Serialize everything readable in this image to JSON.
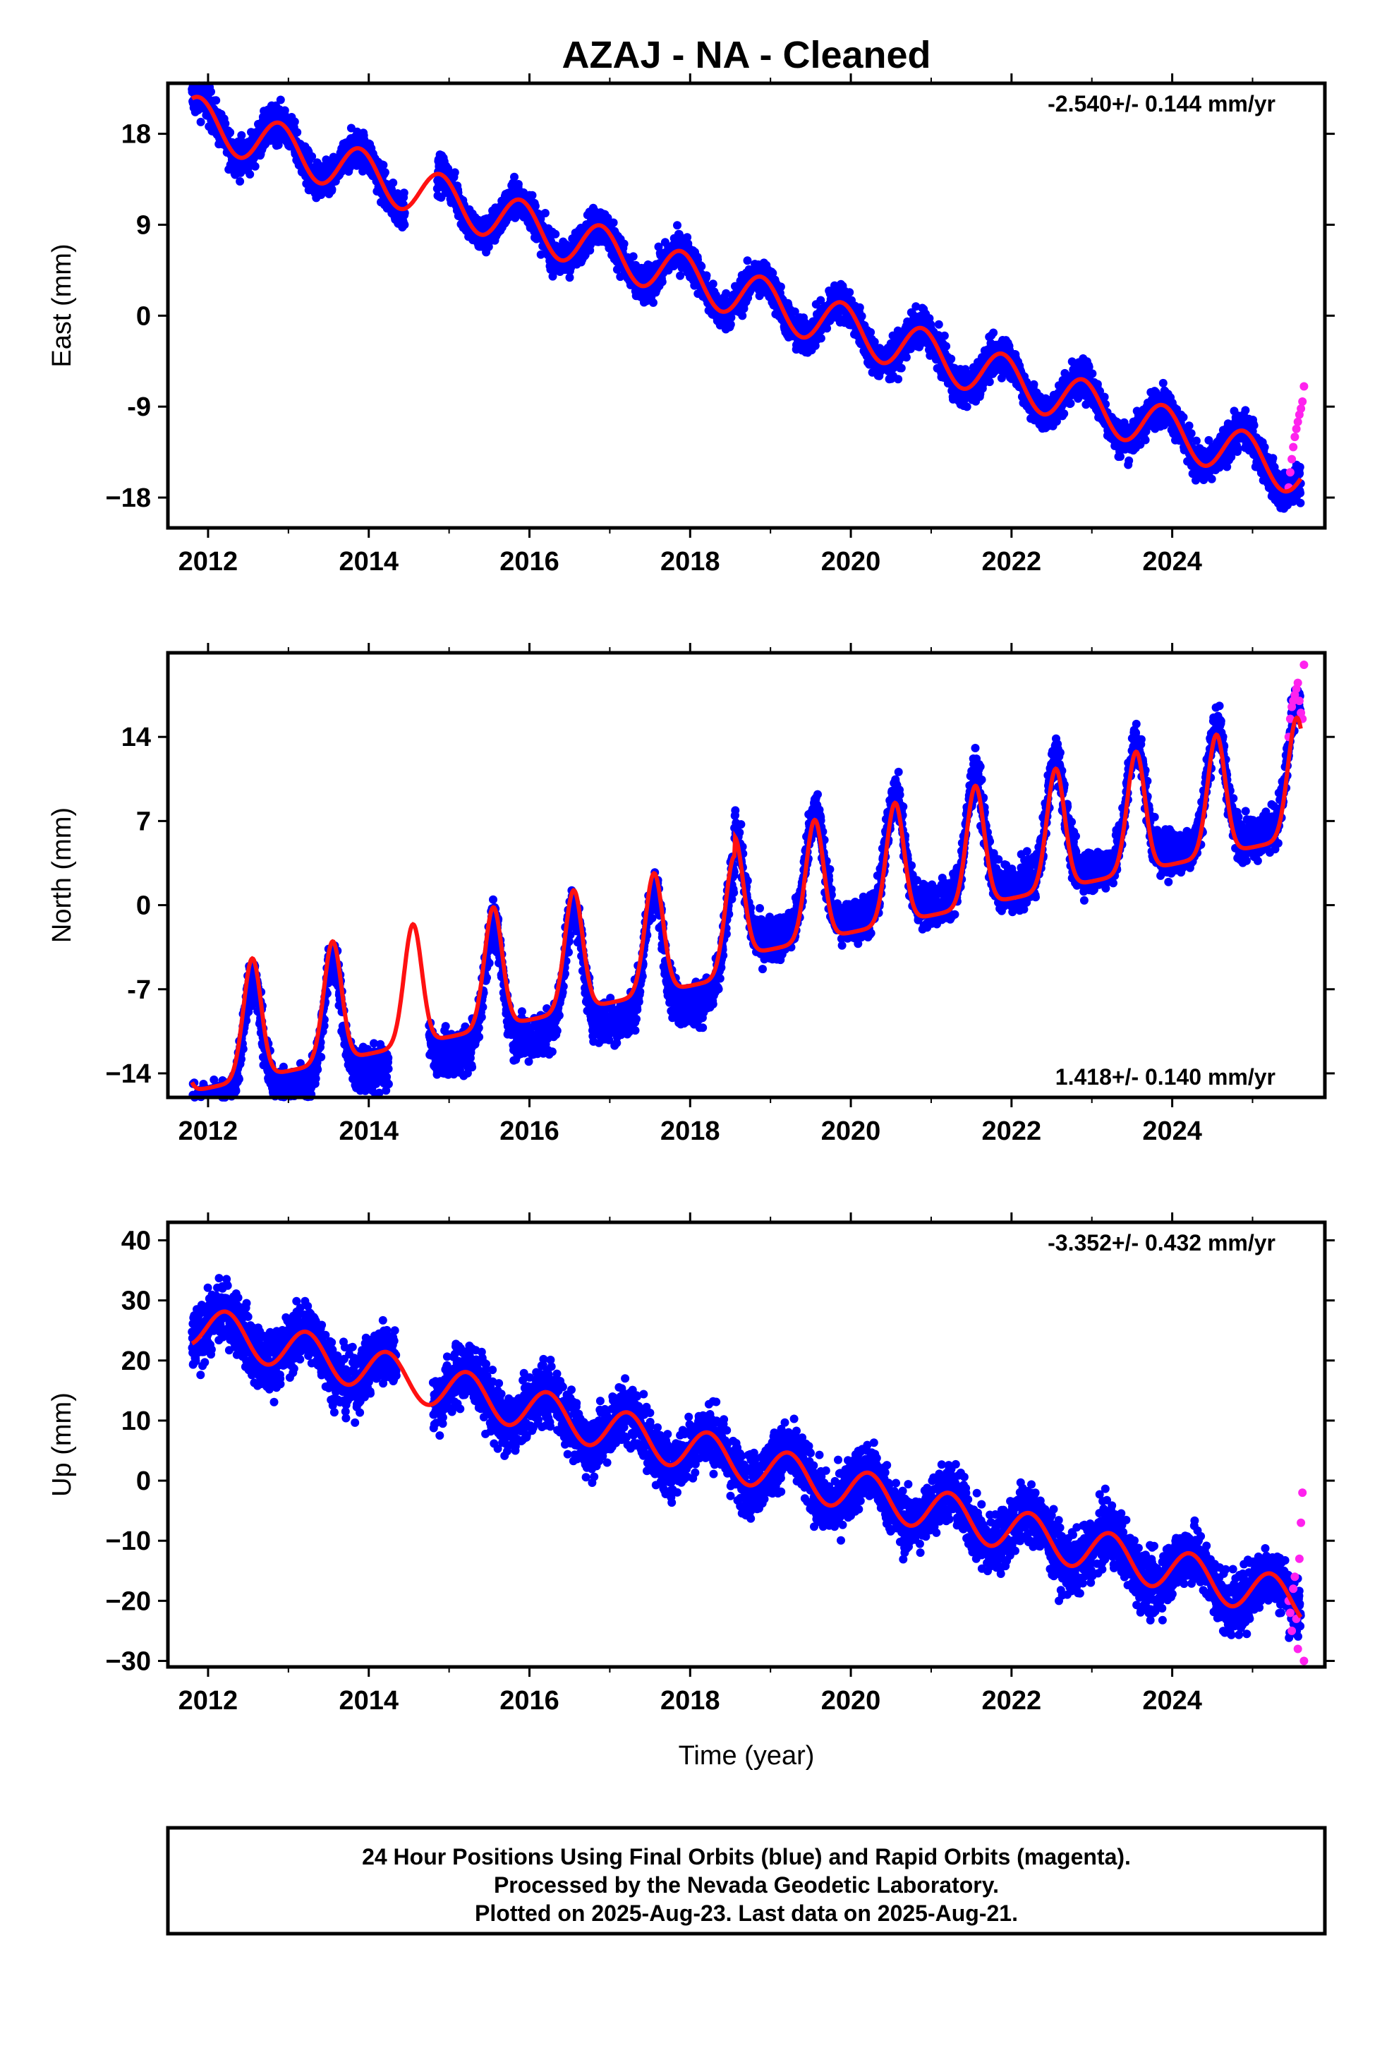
{
  "title": "AZAJ  - NA - Cleaned",
  "colors": {
    "final_orbits": "#0000ff",
    "rapid_orbits": "#ff22ee",
    "model_fit": "#ff1111",
    "frame": "#000000"
  },
  "footer": {
    "line1": "24 Hour Positions Using Final Orbits (blue) and Rapid Orbits (magenta).",
    "line2": "Processed by the Nevada Geodetic Laboratory.",
    "line3": "Plotted on 2025-Aug-23. Last data on 2025-Aug-21."
  },
  "chart_data": [
    {
      "type": "scatter",
      "component": "east",
      "ylabel": "East (mm)",
      "xlabel": "",
      "rate_label": "-2.540+/- 0.144 mm/yr",
      "rate_position": "top-right",
      "xlim": [
        2011.5,
        2025.9
      ],
      "ylim": [
        -21,
        23
      ],
      "xticks": [
        "2012",
        "2014",
        "2016",
        "2018",
        "2020",
        "2022",
        "2024"
      ],
      "yticks": [
        {
          "value": 18,
          "label": "18"
        },
        {
          "value": 9,
          "label": "9"
        },
        {
          "value": 0,
          "label": "0"
        },
        {
          "value": -9,
          "label": "-9"
        },
        {
          "value": -18,
          "label": "−18"
        }
      ],
      "model": {
        "offset": 19.5,
        "trend": -2.54,
        "annual_sin": -1.5,
        "annual_cos": 1.8,
        "semiannual_sin": 0.0,
        "semiannual_cos": 0.0,
        "offset_at": 2011.8
      },
      "scatter": 1.3,
      "gaps": [
        [
          2014.45,
          2014.85
        ]
      ],
      "data_span": [
        2011.8,
        2025.6
      ],
      "rapid": {
        "start": 2025.45,
        "end": 2025.64,
        "values": [
          -17.0,
          -15.5,
          -14.2,
          -13.0,
          -12.0,
          -11.2,
          -10.5,
          -9.8,
          -9.2,
          -8.5,
          -7.0
        ]
      },
      "series": [
        {
          "name": "Final Orbits (blue)",
          "points": "daily positions"
        },
        {
          "name": "Rapid Orbits (magenta)",
          "points": "daily positions"
        }
      ]
    },
    {
      "type": "scatter",
      "component": "north",
      "ylabel": "North (mm)",
      "xlabel": "",
      "rate_label": "1.418+/- 0.140 mm/yr",
      "rate_position": "bottom-right",
      "xlim": [
        2011.5,
        2025.9
      ],
      "ylim": [
        -16,
        21
      ],
      "xticks": [
        "2012",
        "2014",
        "2016",
        "2018",
        "2020",
        "2022",
        "2024"
      ],
      "yticks": [
        {
          "value": 14,
          "label": "14"
        },
        {
          "value": 7,
          "label": "7"
        },
        {
          "value": 0,
          "label": "0"
        },
        {
          "value": -7,
          "label": "-7"
        },
        {
          "value": -14,
          "label": "−14"
        }
      ],
      "model": {
        "offset": -12.5,
        "trend": 1.418,
        "annual_sin": 0.0,
        "annual_cos": 0.0,
        "semiannual_sin": 0.0,
        "semiannual_cos": 0.0,
        "offset_at": 2011.8
      },
      "peaked_annual": {
        "peak_phase": 0.55,
        "amplitude": 10.0,
        "width": 0.11,
        "baseline": -2.0
      },
      "data_shift": [
        {
          "from": 2011.8,
          "to": 2018.55,
          "shift": -2.5
        },
        {
          "from": 2018.55,
          "to": 2025.6,
          "shift": 1.5
        }
      ],
      "scatter": 1.3,
      "gaps": [
        [
          2014.25,
          2014.75
        ]
      ],
      "data_span": [
        2011.8,
        2025.6
      ],
      "rapid": {
        "start": 2025.45,
        "end": 2025.64,
        "values": [
          14.0,
          15.5,
          16.5,
          17.0,
          17.5,
          18.0,
          18.5,
          17.0,
          16.0,
          15.5,
          20.0
        ]
      },
      "series": [
        {
          "name": "Final Orbits (blue)",
          "points": "daily positions"
        },
        {
          "name": "Rapid Orbits (magenta)",
          "points": "daily positions"
        }
      ]
    },
    {
      "type": "scatter",
      "component": "up",
      "ylabel": "Up (mm)",
      "xlabel": "Time (year)",
      "rate_label": "-3.352+/- 0.432 mm/yr",
      "rate_position": "top-right",
      "xlim": [
        2011.5,
        2025.9
      ],
      "ylim": [
        -31,
        43
      ],
      "xticks": [
        "2012",
        "2014",
        "2016",
        "2018",
        "2020",
        "2022",
        "2024"
      ],
      "yticks": [
        {
          "value": 40,
          "label": "40"
        },
        {
          "value": 30,
          "label": "30"
        },
        {
          "value": 20,
          "label": "20"
        },
        {
          "value": 10,
          "label": "10"
        },
        {
          "value": 0,
          "label": "0"
        },
        {
          "value": -10,
          "label": "−10"
        },
        {
          "value": -20,
          "label": "−20"
        },
        {
          "value": -30,
          "label": "−30"
        }
      ],
      "model": {
        "offset": 26.0,
        "trend": -3.352,
        "annual_sin": 3.5,
        "annual_cos": 0.5,
        "semiannual_sin": 0.0,
        "semiannual_cos": 0.0,
        "offset_at": 2011.8
      },
      "scatter": 3.6,
      "gaps": [
        [
          2014.35,
          2014.8
        ]
      ],
      "data_span": [
        2011.8,
        2025.6
      ],
      "rapid": {
        "start": 2025.45,
        "end": 2025.64,
        "values": [
          -20.0,
          -22.0,
          -25.0,
          -18.0,
          -16.0,
          -23.0,
          -28.0,
          -13.0,
          -7.0,
          -2.0,
          -30.0
        ]
      },
      "series": [
        {
          "name": "Final Orbits (blue)",
          "points": "daily positions"
        },
        {
          "name": "Rapid Orbits (magenta)",
          "points": "daily positions"
        }
      ]
    }
  ]
}
